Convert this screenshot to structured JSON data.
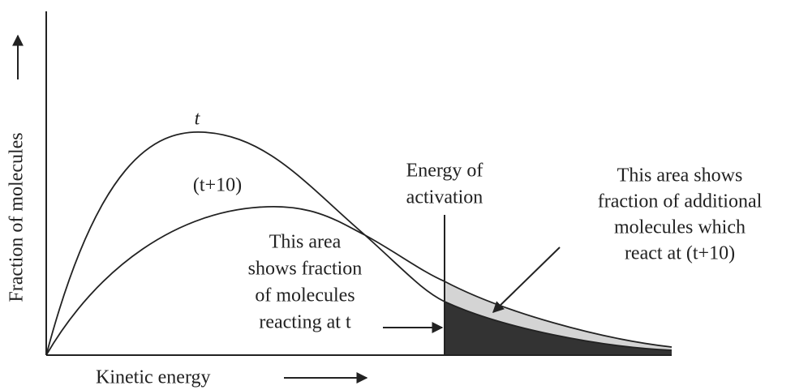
{
  "y_axis_label": "Fraction of molecules",
  "x_axis_label": "Kinetic energy",
  "curve_labels": [
    "t",
    "(t+10)"
  ],
  "activation_label": [
    "Energy of",
    "activation"
  ],
  "additional_area_label": [
    "This area shows",
    "fraction of additional",
    "molecules which",
    "react at (t+10)"
  ],
  "reacting_area_label": [
    "This area",
    "shows fraction",
    "of molecules",
    "reacting at t"
  ]
}
